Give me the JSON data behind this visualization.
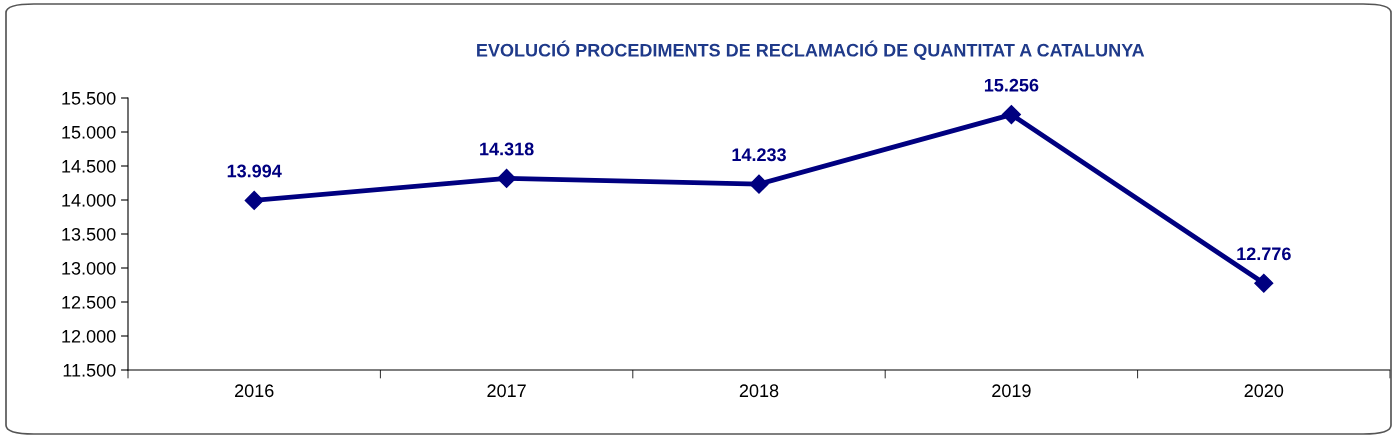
{
  "chart_data": {
    "type": "line",
    "title": "EVOLUCIÓ PROCEDIMENTS DE RECLAMACIÓ DE QUANTITAT A CATALUNYA",
    "categories": [
      "2016",
      "2017",
      "2018",
      "2019",
      "2020"
    ],
    "series": [
      {
        "color": "#000080",
        "values": [
          13994,
          14318,
          14233,
          15256,
          12776
        ],
        "value_labels": [
          "13.994",
          "14.318",
          "14.233",
          "15.256",
          "12.776"
        ]
      }
    ],
    "ylim": [
      11500,
      15500
    ],
    "yticks": [
      {
        "value": 11500,
        "label": "11.500"
      },
      {
        "value": 12000,
        "label": "12.000"
      },
      {
        "value": 12500,
        "label": "12.500"
      },
      {
        "value": 13000,
        "label": "13.000"
      },
      {
        "value": 13500,
        "label": "13.500"
      },
      {
        "value": 14000,
        "label": "14.000"
      },
      {
        "value": 14500,
        "label": "14.500"
      },
      {
        "value": 15000,
        "label": "15.000"
      },
      {
        "value": 15500,
        "label": "15.500"
      }
    ],
    "grid": false,
    "legend": false,
    "marker": "diamond",
    "line_style": "solid"
  }
}
